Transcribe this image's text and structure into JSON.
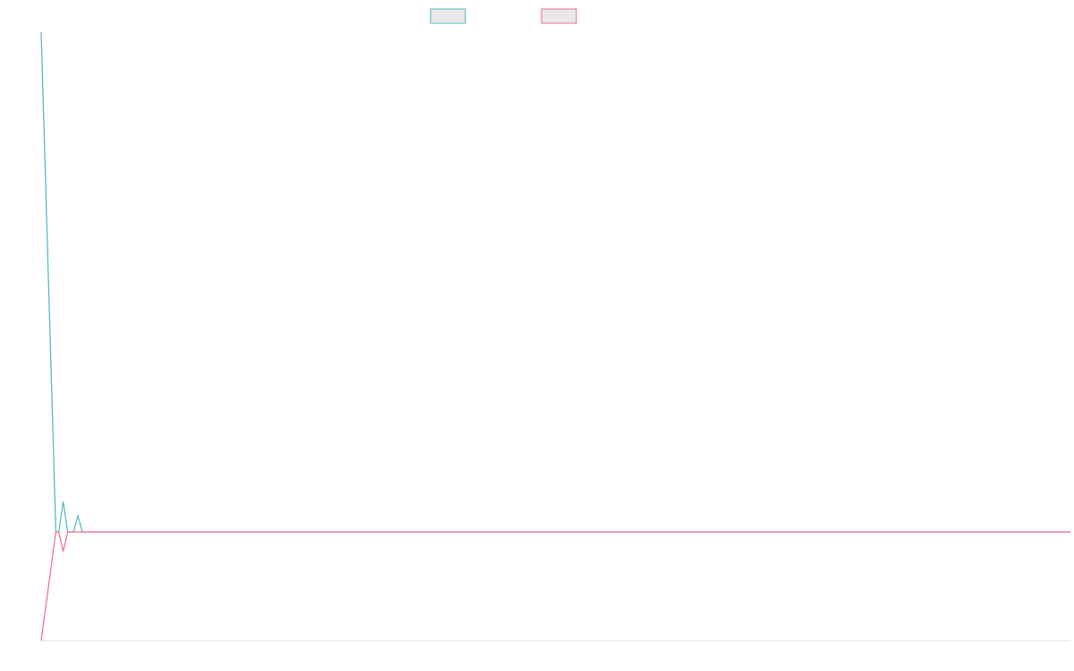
{
  "chart_data": {
    "type": "line",
    "title": "",
    "xlabel": "",
    "ylabel": "",
    "legend_position": "top-center",
    "grid": false,
    "x": [
      0,
      1,
      2,
      3,
      4,
      5,
      6,
      7,
      8,
      9,
      10,
      20,
      30,
      40,
      50,
      60,
      70
    ],
    "ylim": [
      -1.0,
      4.6
    ],
    "series": [
      {
        "name": "",
        "color": "#4bb7c2",
        "values": [
          4.6,
          0.0,
          0.0,
          0.0,
          0.0,
          0.0,
          0.0,
          0.0,
          0.0,
          0.0,
          0.0,
          0.0,
          0.0,
          0.0,
          0.0,
          0.0,
          0.0
        ]
      },
      {
        "name": "",
        "color": "#f06a8c",
        "values": [
          -1.0,
          0.0,
          0.0,
          0.0,
          0.0,
          0.0,
          0.0,
          0.0,
          0.0,
          0.0,
          0.0,
          0.0,
          0.0,
          0.0,
          0.0,
          0.0,
          0.0
        ]
      }
    ],
    "spikes": [
      {
        "series": 0,
        "x": 1.5,
        "y": 0.28
      },
      {
        "series": 1,
        "x": 1.5,
        "y": -0.18
      },
      {
        "series": 0,
        "x": 2.5,
        "y": 0.15
      }
    ]
  }
}
